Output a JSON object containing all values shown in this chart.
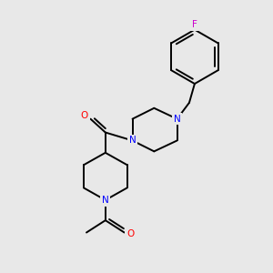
{
  "background_color": "#e8e8e8",
  "bond_color": "#000000",
  "atom_colors": {
    "N": "#0000ff",
    "O": "#ff0000",
    "F": "#cc00cc",
    "C": "#000000"
  },
  "figsize": [
    3.0,
    3.0
  ],
  "dpi": 100,
  "lw": 1.4,
  "fontsize": 7.5
}
